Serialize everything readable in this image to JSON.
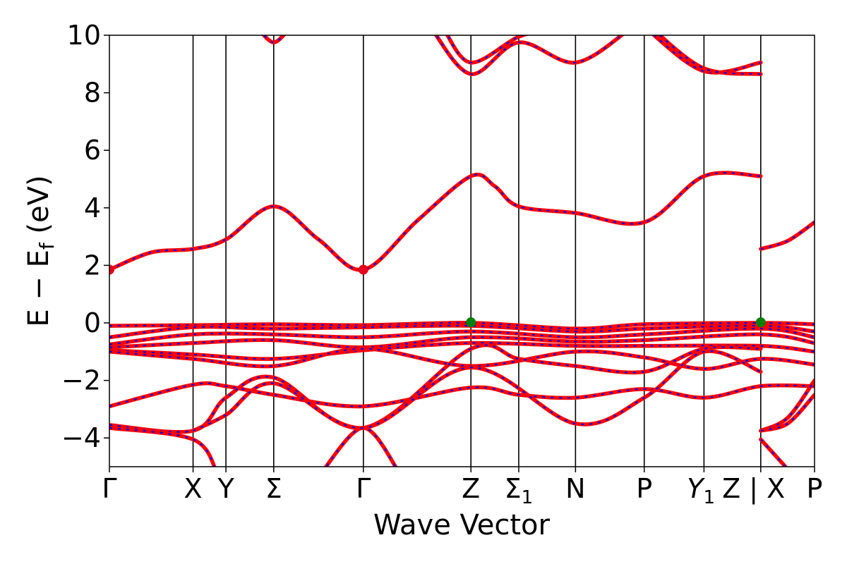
{
  "chart_data": {
    "type": "line",
    "xlabel": "Wave Vector",
    "ylabel": "E − E",
    "ylabel_sub": "f",
    "ylabel_unit": " (eV)",
    "ylim": [
      -5,
      10
    ],
    "yticks": [
      -4,
      -2,
      0,
      2,
      4,
      6,
      8,
      10
    ],
    "ytick_labels": [
      "−4",
      "−2",
      "0",
      "2",
      "4",
      "6",
      "8",
      "10"
    ],
    "xlim": [
      0,
      11.8
    ],
    "kpoints": [
      {
        "x": 0,
        "label": "Γ",
        "line": false
      },
      {
        "x": 1.4,
        "label": "X",
        "line": true
      },
      {
        "x": 1.95,
        "label": "Y",
        "line": true
      },
      {
        "x": 2.75,
        "label": "Σ",
        "line": true
      },
      {
        "x": 4.25,
        "label": "Γ",
        "line": true
      },
      {
        "x": 6.05,
        "label": "Z",
        "line": true
      },
      {
        "x": 6.85,
        "label": "Σ",
        "sub": "1",
        "line": true
      },
      {
        "x": 7.8,
        "label": "N",
        "line": true
      },
      {
        "x": 8.95,
        "label": "P",
        "line": true
      },
      {
        "x": 9.95,
        "label": "Y",
        "sub": "1",
        "italic": true,
        "line": true,
        "label_offset": -0.05
      },
      {
        "x": 10.9,
        "label": "Z | X",
        "line": true,
        "label_offset": -0.12
      },
      {
        "x": 11.8,
        "label": "P",
        "line": false
      }
    ],
    "line_colors": {
      "solid": "#ff0000",
      "dashed": "#0000ff",
      "kline": "#000000"
    },
    "series": [
      {
        "points": [
          [
            0,
            1.85
          ],
          [
            0.7,
            2.45
          ],
          [
            1.4,
            2.57
          ],
          [
            1.95,
            2.9
          ],
          [
            2.75,
            4.05
          ],
          [
            3.5,
            2.9
          ],
          [
            4.25,
            1.85
          ],
          [
            5.15,
            3.55
          ],
          [
            6.05,
            5.1
          ],
          [
            6.45,
            4.75
          ],
          [
            6.85,
            4.05
          ],
          [
            7.8,
            3.82
          ],
          [
            8.95,
            3.5
          ],
          [
            9.95,
            5.1
          ],
          [
            10.9,
            5.1
          ]
        ]
      },
      {
        "points": [
          [
            10.9,
            2.57
          ],
          [
            11.35,
            2.85
          ],
          [
            11.8,
            3.5
          ]
        ]
      },
      {
        "points": [
          [
            0,
            -0.1
          ],
          [
            1.4,
            -0.08
          ],
          [
            2.75,
            -0.05
          ],
          [
            4.25,
            -0.08
          ],
          [
            6.05,
            0.0
          ],
          [
            7.8,
            -0.2
          ],
          [
            8.95,
            -0.05
          ],
          [
            10.9,
            0.0
          ],
          [
            11.8,
            -0.05
          ]
        ]
      },
      {
        "points": [
          [
            0,
            -0.5
          ],
          [
            1.4,
            -0.15
          ],
          [
            2.75,
            -0.2
          ],
          [
            4.25,
            -0.15
          ],
          [
            6.05,
            -0.1
          ],
          [
            7.8,
            -0.3
          ],
          [
            8.95,
            -0.2
          ],
          [
            10.9,
            -0.1
          ],
          [
            11.8,
            -0.3
          ]
        ]
      },
      {
        "points": [
          [
            0,
            -0.75
          ],
          [
            1.4,
            -0.4
          ],
          [
            2.75,
            -0.4
          ],
          [
            4.25,
            -0.5
          ],
          [
            6.05,
            -0.3
          ],
          [
            7.8,
            -0.5
          ],
          [
            8.95,
            -0.4
          ],
          [
            10.9,
            -0.2
          ],
          [
            11.8,
            -0.5
          ]
        ]
      },
      {
        "points": [
          [
            0,
            -0.85
          ],
          [
            1.4,
            -0.7
          ],
          [
            2.75,
            -0.6
          ],
          [
            4.25,
            -0.85
          ],
          [
            6.05,
            -0.5
          ],
          [
            7.8,
            -0.65
          ],
          [
            8.95,
            -0.6
          ],
          [
            10.9,
            -0.4
          ],
          [
            11.8,
            -0.7
          ]
        ]
      },
      {
        "points": [
          [
            0,
            -0.95
          ],
          [
            1.4,
            -1.1
          ],
          [
            2.75,
            -1.25
          ],
          [
            4.25,
            -0.95
          ],
          [
            6.05,
            -0.7
          ],
          [
            7.8,
            -0.8
          ],
          [
            8.95,
            -0.8
          ],
          [
            10.9,
            -0.8
          ],
          [
            11.8,
            -1.0
          ]
        ]
      },
      {
        "points": [
          [
            0,
            -1.0
          ],
          [
            1.4,
            -1.25
          ],
          [
            2.75,
            -1.5
          ],
          [
            4.25,
            -0.9
          ],
          [
            6.05,
            -1.5
          ],
          [
            7.8,
            -1.0
          ],
          [
            8.95,
            -1.2
          ],
          [
            9.95,
            -1.6
          ],
          [
            10.9,
            -1.25
          ],
          [
            11.8,
            -1.45
          ]
        ]
      },
      {
        "points": [
          [
            0,
            -2.9
          ],
          [
            1.4,
            -2.15
          ],
          [
            1.95,
            -2.2
          ],
          [
            2.75,
            -2.5
          ],
          [
            4.25,
            -2.9
          ],
          [
            6.05,
            -2.25
          ],
          [
            6.85,
            -2.5
          ],
          [
            7.8,
            -2.6
          ],
          [
            8.95,
            -2.3
          ],
          [
            9.95,
            -2.6
          ],
          [
            10.9,
            -2.2
          ],
          [
            11.8,
            -2.2
          ]
        ]
      },
      {
        "points": [
          [
            0,
            -3.55
          ],
          [
            1.4,
            -3.75
          ],
          [
            1.95,
            -2.6
          ],
          [
            2.75,
            -1.9
          ],
          [
            4.25,
            -3.65
          ],
          [
            6.05,
            -0.9
          ],
          [
            6.85,
            -1.25
          ],
          [
            7.8,
            -1.5
          ],
          [
            8.95,
            -1.7
          ],
          [
            9.95,
            -0.9
          ],
          [
            10.9,
            -0.9
          ]
        ]
      },
      {
        "points": [
          [
            0,
            -3.65
          ],
          [
            1.4,
            -4.05
          ],
          [
            1.8,
            -5.2
          ]
        ]
      },
      {
        "points": [
          [
            1.4,
            -3.75
          ],
          [
            1.95,
            -3.2
          ],
          [
            2.75,
            -2.1
          ],
          [
            4.25,
            -3.65
          ],
          [
            6.05,
            -1.55
          ],
          [
            7.8,
            -3.5
          ],
          [
            8.95,
            -2.6
          ],
          [
            9.95,
            -1.0
          ],
          [
            10.9,
            -1.7
          ]
        ]
      },
      {
        "points": [
          [
            3.55,
            -5.2
          ],
          [
            4.25,
            -3.65
          ],
          [
            4.85,
            -5.2
          ]
        ]
      },
      {
        "points": [
          [
            10.9,
            -3.75
          ],
          [
            11.35,
            -3.3
          ],
          [
            11.8,
            -2.0
          ]
        ]
      },
      {
        "points": [
          [
            10.9,
            -4.05
          ],
          [
            11.4,
            -5.2
          ]
        ]
      },
      {
        "points": [
          [
            10.9,
            -3.75
          ],
          [
            11.35,
            -3.5
          ],
          [
            11.8,
            -2.5
          ]
        ]
      },
      {
        "points": [
          [
            2.5,
            10.2
          ],
          [
            2.75,
            9.75
          ],
          [
            3.0,
            10.2
          ]
        ]
      },
      {
        "points": [
          [
            5.4,
            10.2
          ],
          [
            6.05,
            8.65
          ],
          [
            6.85,
            9.75
          ],
          [
            7.8,
            9.05
          ],
          [
            8.7,
            10.2
          ]
        ]
      },
      {
        "points": [
          [
            5.6,
            10.2
          ],
          [
            6.05,
            9.05
          ],
          [
            6.85,
            9.95
          ],
          [
            7.4,
            10.2
          ]
        ]
      },
      {
        "points": [
          [
            9.0,
            10.2
          ],
          [
            9.95,
            8.75
          ],
          [
            10.9,
            9.05
          ]
        ]
      },
      {
        "points": [
          [
            9.1,
            10.2
          ],
          [
            9.95,
            8.85
          ],
          [
            10.9,
            8.65
          ]
        ]
      }
    ],
    "markers": [
      {
        "x": 0,
        "y": 1.85,
        "color": "#e8001c"
      },
      {
        "x": 4.25,
        "y": 1.85,
        "color": "#e8001c"
      },
      {
        "x": 6.05,
        "y": 0.02,
        "color": "#008000"
      },
      {
        "x": 10.9,
        "y": 0.02,
        "color": "#008000"
      }
    ]
  }
}
